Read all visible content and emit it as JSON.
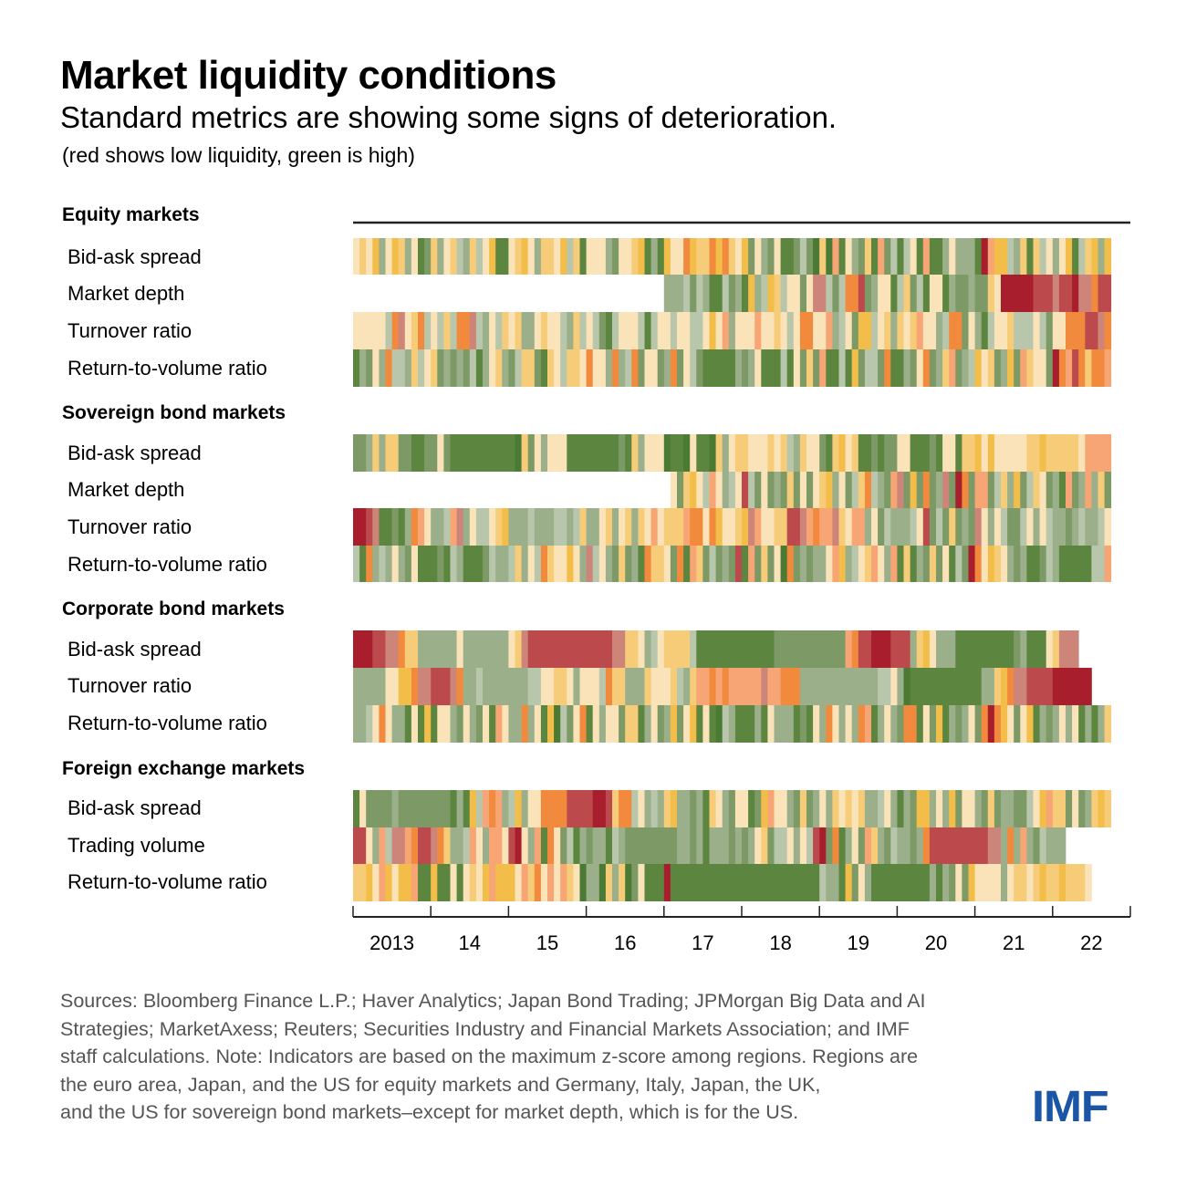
{
  "header": {
    "title": "Market liquidity conditions",
    "subtitle": "Standard metrics are showing some signs of deterioration.",
    "note": "(red shows low liquidity, green is high)"
  },
  "palette": {
    "levels": [
      "#a81e2c",
      "#bc4a4c",
      "#cc8578",
      "#f28a3e",
      "#f7a574",
      "#f3bd4a",
      "#f6cc78",
      "#fae3b8",
      "#b8c6ab",
      "#9bb08a",
      "#7d9a66",
      "#5c863f",
      "#4a7a33"
    ],
    "legend_low": "red = low liquidity",
    "legend_high": "green = high liquidity"
  },
  "chart_data": {
    "type": "heatmap",
    "title": "Market liquidity conditions",
    "subtitle": "Standard metrics are showing some signs of deterioration.",
    "color_meaning": "red shows low liquidity, green is high",
    "value_scale": "0 = lowest liquidity (dark red) ... 12 = highest liquidity (dark green); '-' = no data",
    "x_start": "2013-01",
    "x_frequency": "monthly",
    "x_periods": 117,
    "x_range": [
      2013,
      2023
    ],
    "x_tick_labels": [
      "2013",
      "14",
      "15",
      "16",
      "17",
      "18",
      "19",
      "20",
      "21",
      "22"
    ],
    "groups": [
      {
        "name": "Equity markets",
        "rows": [
          {
            "label": "Bid-ask spread",
            "values": "7675975697ba6976896875bb76579667586b7779a7765b9b5773566353675a79a7bba8ac6c4b79a6b4a8b87b4bb97999b0455896b687975b865955b755597"
          },
          {
            "label": "Market depth",
            "values": "------------------------------------------------9998a89bb8a9b59856877a7228a8331a977b86a8b77b9aa9aa6700000111211022311012410023001"
          },
          {
            "label": "Turnover ratio",
            "values": "77777832763878683328978676997677896878ab87778b8778778875749777477678733774987a5587696764779833a79b877688878a77333112312232211"
          },
          {
            "label": "Return-to-volume ratio",
            "values": "b9a7938896876a9a9a8b9769a866ab67866737793983a77a93a78abbbbb9a97bbb8b7a6a4bb8b5a88a3bb9a73a964a98576a95a4677a0341363343395332"
          }
        ]
      },
      {
        "name": "Sovereign bond markets",
        "rows": [
          {
            "label": "Bid-ask spread",
            "values": "aa96966aabbaa7abbbbbbbbbbc6a79777bbbbbbbbab69777cbbc7bbc6976677767689677ab6576bbabaa77bbbab77b6657577777665666667444422001144"
          },
          {
            "label": "Market depth",
            "values": "-------------------------------------------------7a65784798718a7a9a6a7a76597a86389a42a5a3a92a03a44a8695a867a9b4a9496a931310100111"
          },
          {
            "label": "Turnover ratio",
            "values": "0012bbab9347998429788765999899988986997697696747666433735776524776611243442674497a8999871a8a6a9a27978aa8797899a989987779991000"
          },
          {
            "label": "Return-to-volume ratio",
            "values": "8b398979a7bbbab89bbba8998697836775792879a6a9b3667a3b46a8a9a1b4a6a7c3a9a9974598764794b6b9a6a7b8a0375679a9bba89bbbbb8847386011100"
          }
        ]
      },
      {
        "name": "Corporate bond markets",
        "rows": [
          {
            "label": "Bid-ask spread",
            "values": "00011223669999997999999976211111111111112266798766668bbbbbbbbbbbbaaaaaaaaaaa43110001119657999bbbbbbbbba9bbb76222"
          },
          {
            "label": "Turnover ratio",
            "values": "9999977553221112399899999998877667977783669996777689644343444442443339999999999998879cbbbbbbbbbbb99653221111000000"
          },
          {
            "label": "Return-to-volume ratio",
            "values": "99873799b7b5b779a79a7b4799397b5c8a73b7977a66b97a95a75b7bc89bbb9b7999bab793797934b979a33b7a5b9a97a30357a75b9a9797b9b965b3b1b"
          }
        ]
      },
      {
        "name": "Foreign exchange markets",
        "rows": [
          {
            "label": "Bid-ask spread",
            "values": "b7aaaa9aaaaaaaab9b5843498597733331111001633879896599a9b679a77ba54779a6a9796767699879b9a559795a779a6a99aa875466a7a9656a4424341"
          },
          {
            "label": "Trading volume",
            "values": "11794822431123699847944710794b37a8b9a99b89aaaaaaaa99a9b999a9a976a88797810a3b97a469a899a931111111112293949a8999"
          },
          {
            "label": "Return-to-volume ratio",
            "values": "6657457554bb5bb7b767545557463747467c99c696ca7bbb0bbbbbbbbbbbbbbbbbbbbbbb899b5a79bbbbbbbbb9b9a7a5777797667656656667"
          }
        ]
      }
    ]
  },
  "axis": {
    "ticks": [
      "2013",
      "14",
      "15",
      "16",
      "17",
      "18",
      "19",
      "20",
      "21",
      "22"
    ]
  },
  "footer": {
    "source_lines": [
      "Sources: Bloomberg Finance L.P.; Haver Analytics; Japan Bond Trading; JPMorgan Big Data and AI",
      "Strategies; MarketAxess; Reuters; Securities Industry and Financial Markets Association; and IMF",
      "staff calculations. Note: Indicators are based on the maximum z-score among regions. Regions are",
      "the euro area, Japan, and the US for equity markets and Germany, Italy, Japan, the UK,",
      "and the US for sovereign bond markets–except for market depth, which is for the US."
    ],
    "logo": "IMF"
  }
}
